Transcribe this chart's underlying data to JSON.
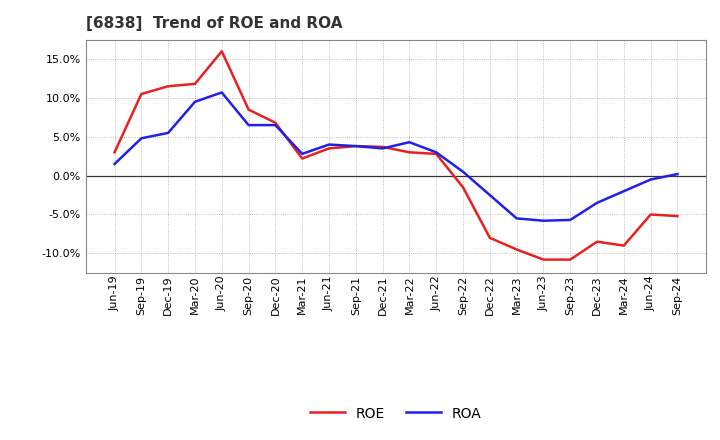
{
  "title": "[6838]  Trend of ROE and ROA",
  "x_labels": [
    "Jun-19",
    "Sep-19",
    "Dec-19",
    "Mar-20",
    "Jun-20",
    "Sep-20",
    "Dec-20",
    "Mar-21",
    "Jun-21",
    "Sep-21",
    "Dec-21",
    "Mar-22",
    "Jun-22",
    "Sep-22",
    "Dec-22",
    "Mar-23",
    "Jun-23",
    "Sep-23",
    "Dec-23",
    "Mar-24",
    "Jun-24",
    "Sep-24"
  ],
  "roe": [
    3.0,
    10.5,
    11.5,
    11.8,
    16.0,
    8.5,
    6.8,
    2.2,
    3.5,
    3.8,
    3.7,
    3.0,
    2.8,
    -1.5,
    -8.0,
    -9.5,
    -10.8,
    -10.8,
    -8.5,
    -9.0,
    -5.0,
    -5.2
  ],
  "roa": [
    1.5,
    4.8,
    5.5,
    9.5,
    10.7,
    6.5,
    6.5,
    2.8,
    4.0,
    3.8,
    3.5,
    4.3,
    3.0,
    0.5,
    -2.5,
    -5.5,
    -5.8,
    -5.7,
    -3.5,
    -2.0,
    -0.5,
    0.2
  ],
  "roe_color": "#e82020",
  "roa_color": "#2020e8",
  "ylim": [
    -12.5,
    17.5
  ],
  "yticks": [
    -10.0,
    -5.0,
    0.0,
    5.0,
    10.0,
    15.0
  ],
  "grid_color": "#aaaaaa",
  "bg_color": "#ffffff",
  "plot_bg_color": "#ffffff",
  "linewidth": 1.8,
  "title_fontsize": 11,
  "tick_fontsize": 8
}
